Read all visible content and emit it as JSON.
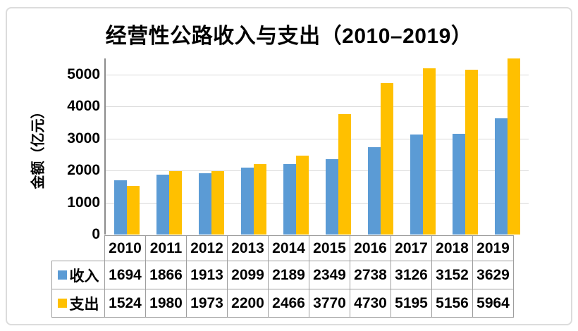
{
  "chart_title": "经营性公路收入与支出（2010–2019）",
  "y_axis": {
    "title": "金额（亿元）",
    "tick_labels": [
      "0",
      "1000",
      "2000",
      "3000",
      "4000",
      "5000"
    ],
    "tick_values": [
      0,
      1000,
      2000,
      3000,
      4000,
      5000
    ]
  },
  "colors": {
    "income_bar": "#5B9BD5",
    "expense_bar": "#FFC000",
    "gridline": "#D9D9D9",
    "axis_line": "#8C8C8C",
    "table_border": "#9E9E9E",
    "frame_border": "#DCDCDC",
    "text": "#000000"
  },
  "chart_data": {
    "type": "bar",
    "title": "经营性公路收入与支出（2010–2019）",
    "xlabel": "",
    "ylabel": "金额（亿元）",
    "categories": [
      "2010",
      "2011",
      "2012",
      "2013",
      "2014",
      "2015",
      "2016",
      "2017",
      "2018",
      "2019"
    ],
    "series": [
      {
        "name": "收入",
        "color": "#5B9BD5",
        "values": [
          1694,
          1866,
          1913,
          2099,
          2189,
          2349,
          2738,
          3126,
          3152,
          3629
        ]
      },
      {
        "name": "支出",
        "color": "#FFC000",
        "values": [
          1524,
          1980,
          1973,
          2200,
          2466,
          3770,
          4730,
          5195,
          5156,
          5964
        ]
      }
    ],
    "ylim": [
      0,
      5500
    ],
    "grid": true,
    "legend_position": "table-left",
    "data_table_shown": true
  }
}
